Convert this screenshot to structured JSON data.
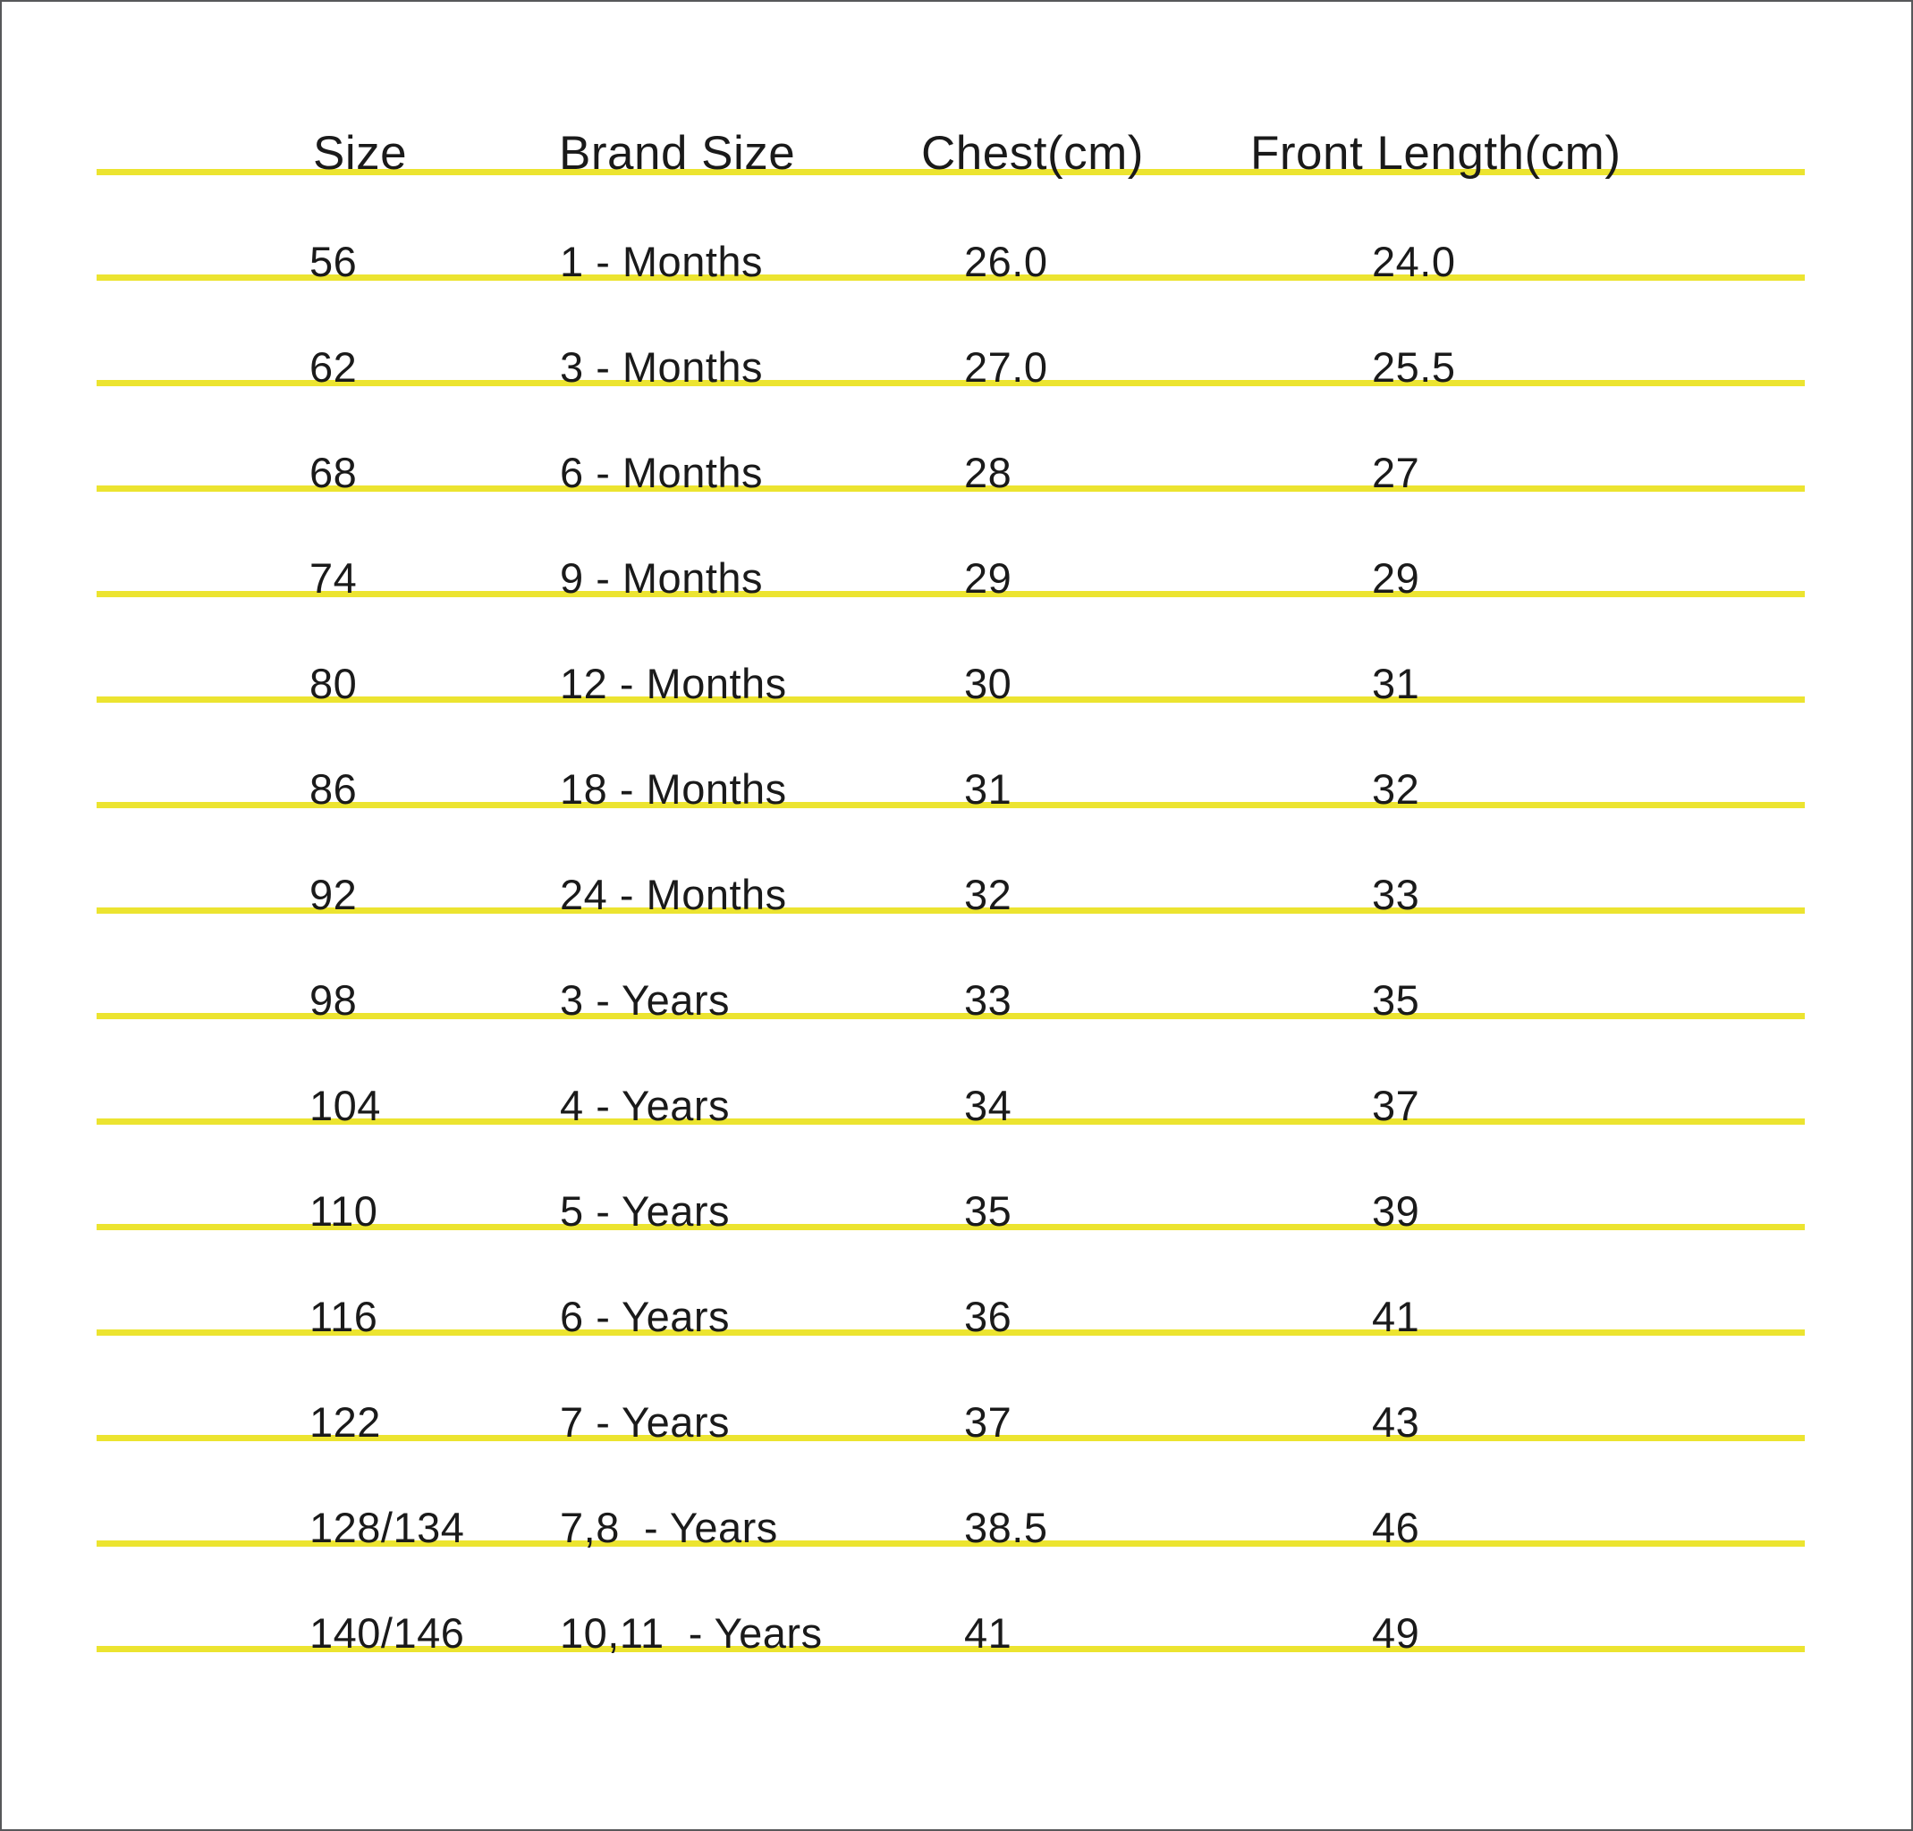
{
  "chart_data": {
    "type": "table",
    "title": "",
    "columns": [
      "Size",
      "Brand Size",
      "Chest(cm)",
      "Front Length(cm)"
    ],
    "rows": [
      {
        "size": "56",
        "brand": "1 - Months",
        "chest": "26.0",
        "front": "24.0"
      },
      {
        "size": "62",
        "brand": "3 - Months",
        "chest": "27.0",
        "front": "25.5"
      },
      {
        "size": "68",
        "brand": "6 - Months",
        "chest": "28",
        "front": "27"
      },
      {
        "size": "74",
        "brand": "9 - Months",
        "chest": "29",
        "front": "29"
      },
      {
        "size": "80",
        "brand": "12 - Months",
        "chest": "30",
        "front": "31"
      },
      {
        "size": "86",
        "brand": "18 - Months",
        "chest": "31",
        "front": "32"
      },
      {
        "size": "92",
        "brand": "24 - Months",
        "chest": "32",
        "front": "33"
      },
      {
        "size": "98",
        "brand": "3 - Years",
        "chest": "33",
        "front": "35"
      },
      {
        "size": "104",
        "brand": "4 - Years",
        "chest": "34",
        "front": "37"
      },
      {
        "size": "110",
        "brand": "5 - Years",
        "chest": "35",
        "front": "39"
      },
      {
        "size": "116",
        "brand": "6 - Years",
        "chest": "36",
        "front": "41"
      },
      {
        "size": "122",
        "brand": "7 - Years",
        "chest": "37",
        "front": "43"
      },
      {
        "size": "128/134",
        "brand": "7,8  - Years",
        "chest": "38.5",
        "front": "46"
      },
      {
        "size": "140/146",
        "brand": "10,11  - Years",
        "chest": "41",
        "front": "49"
      }
    ],
    "colors": {
      "divider": "#ece430",
      "text": "#1a1a1a",
      "page_border": "#57585a",
      "background": "#ffffff"
    },
    "layout_hints": {
      "grid": "horizontal yellow rules under every row",
      "legend": "none",
      "axes": "none"
    }
  }
}
